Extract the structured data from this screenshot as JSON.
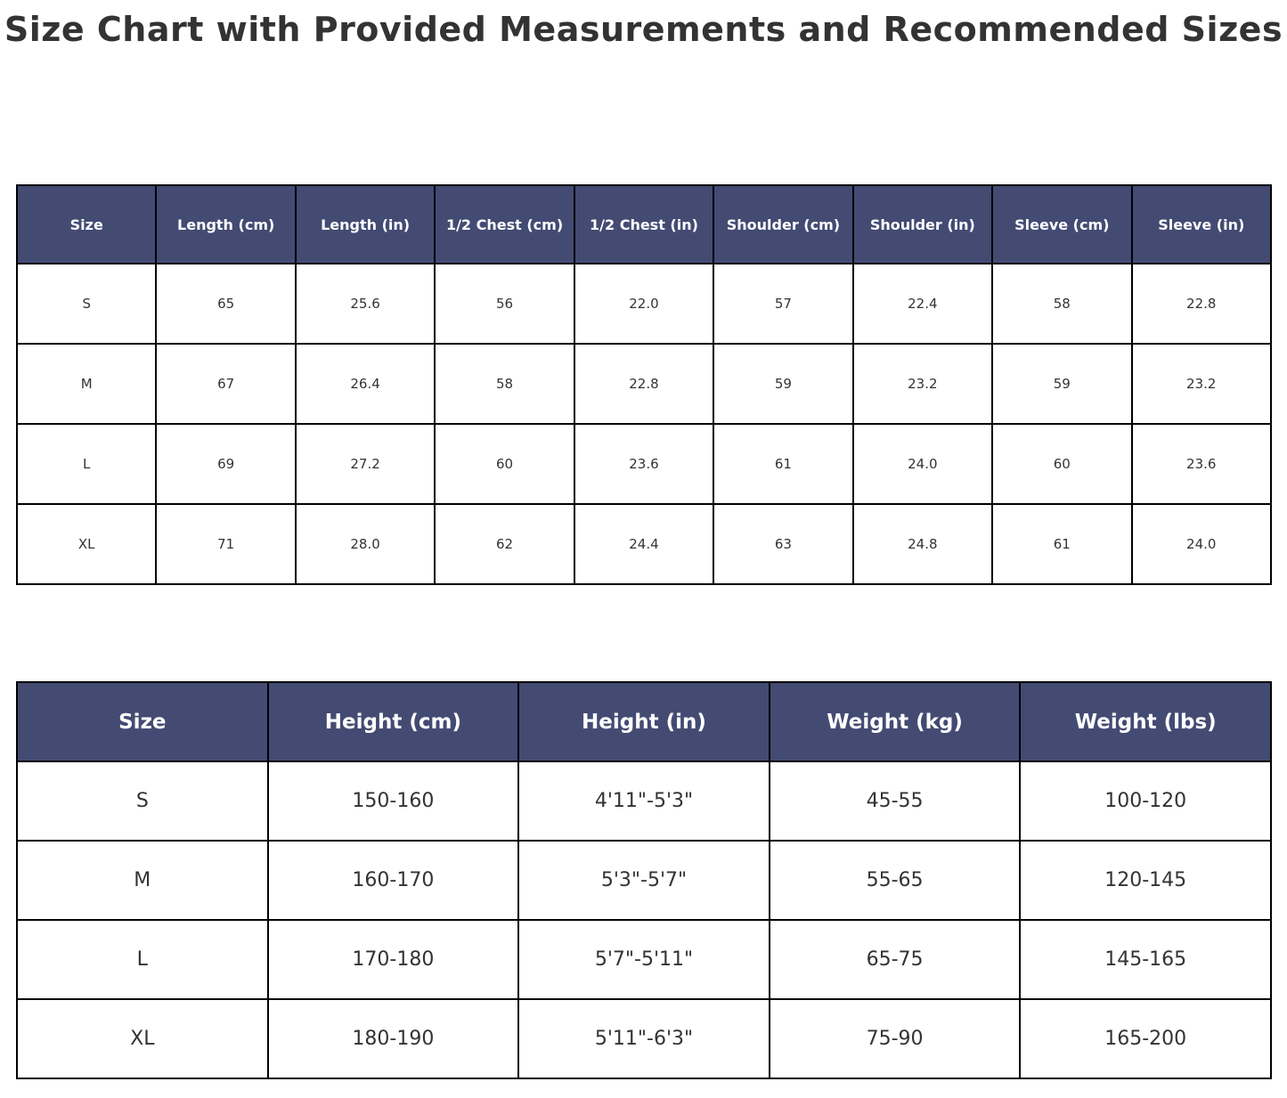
{
  "title": "Size Chart with Provided Measurements and Recommended Sizes",
  "colors": {
    "header_bg": "#434b73",
    "header_text": "#ffffff",
    "body_text": "#333333",
    "border": "#000000",
    "background": "#ffffff",
    "title_text": "#333333"
  },
  "chart_data": [
    {
      "type": "table",
      "name": "garment-measurements",
      "columns": [
        "Size",
        "Length (cm)",
        "Length (in)",
        "1/2 Chest (cm)",
        "1/2 Chest (in)",
        "Shoulder (cm)",
        "Shoulder (in)",
        "Sleeve (cm)",
        "Sleeve (in)"
      ],
      "rows": [
        [
          "S",
          "65",
          "25.6",
          "56",
          "22.0",
          "57",
          "22.4",
          "58",
          "22.8"
        ],
        [
          "M",
          "67",
          "26.4",
          "58",
          "22.8",
          "59",
          "23.2",
          "59",
          "23.2"
        ],
        [
          "L",
          "69",
          "27.2",
          "60",
          "23.6",
          "61",
          "24.0",
          "60",
          "23.6"
        ],
        [
          "XL",
          "71",
          "28.0",
          "62",
          "24.4",
          "63",
          "24.8",
          "61",
          "24.0"
        ]
      ]
    },
    {
      "type": "table",
      "name": "recommended-sizes",
      "columns": [
        "Size",
        "Height (cm)",
        "Height (in)",
        "Weight (kg)",
        "Weight (lbs)"
      ],
      "rows": [
        [
          "S",
          "150-160",
          "4'11\"-5'3\"",
          "45-55",
          "100-120"
        ],
        [
          "M",
          "160-170",
          "5'3\"-5'7\"",
          "55-65",
          "120-145"
        ],
        [
          "L",
          "170-180",
          "5'7\"-5'11\"",
          "65-75",
          "145-165"
        ],
        [
          "XL",
          "180-190",
          "5'11\"-6'3\"",
          "75-90",
          "165-200"
        ]
      ]
    }
  ]
}
